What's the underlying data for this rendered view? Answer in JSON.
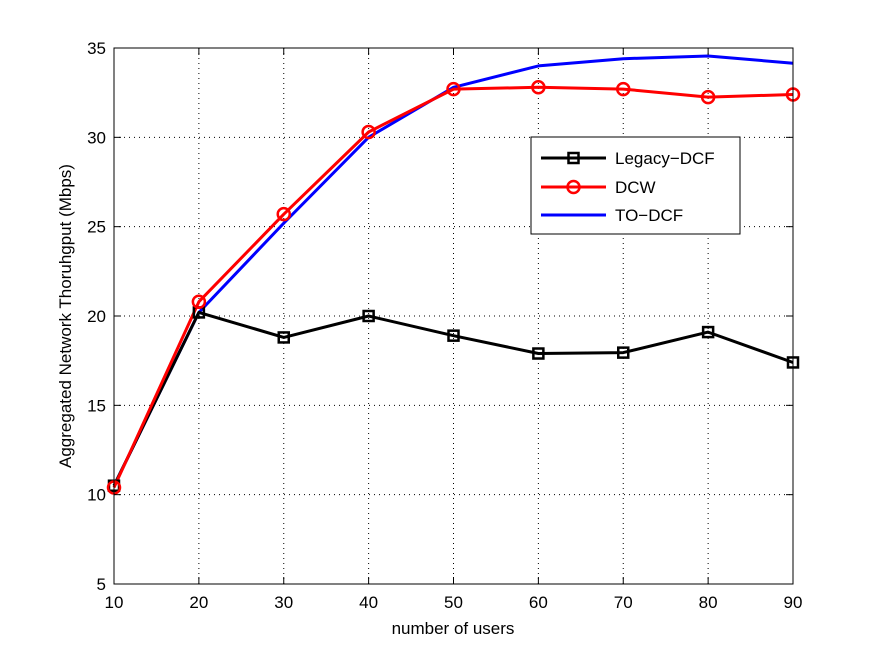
{
  "chart_data": {
    "type": "line",
    "title": "",
    "xlabel": "number of users",
    "ylabel": "Aggregated Network Thoruhgput (Mbps)",
    "xlim": [
      10,
      90
    ],
    "ylim": [
      5,
      35
    ],
    "xticks": [
      10,
      20,
      30,
      40,
      50,
      60,
      70,
      80,
      90
    ],
    "yticks": [
      5,
      10,
      15,
      20,
      25,
      30,
      35
    ],
    "xtick_labels": [
      "10",
      "20",
      "30",
      "40",
      "50",
      "60",
      "70",
      "80",
      "90"
    ],
    "ytick_labels": [
      "5",
      "10",
      "15",
      "20",
      "25",
      "30",
      "35"
    ],
    "grid": true,
    "legend_position": "upper-right",
    "x": [
      10,
      20,
      30,
      40,
      50,
      60,
      70,
      80,
      90
    ],
    "series": [
      {
        "name": "Legacy−DCF",
        "color": "#000000",
        "marker": "square",
        "values": [
          10.5,
          20.2,
          18.8,
          20.0,
          18.9,
          17.9,
          17.95,
          19.1,
          17.4
        ]
      },
      {
        "name": "DCW",
        "color": "#ff0000",
        "marker": "circle",
        "values": [
          10.4,
          20.8,
          25.7,
          30.3,
          32.7,
          32.8,
          32.7,
          32.25,
          32.4
        ]
      },
      {
        "name": "TO−DCF",
        "color": "#0000ff",
        "marker": "none",
        "values": [
          10.5,
          20.2,
          25.2,
          30.0,
          32.8,
          34.0,
          34.4,
          34.55,
          34.15
        ]
      }
    ]
  }
}
